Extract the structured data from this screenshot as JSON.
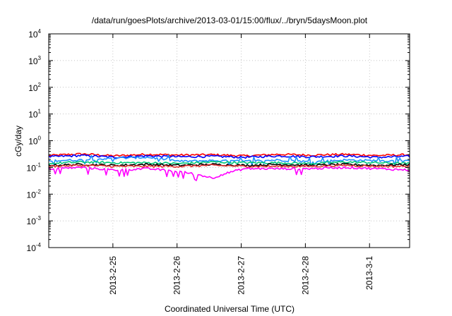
{
  "chart_data": {
    "type": "line",
    "title": "/data/run/goesPlots/archive/2013-03-01/15:00/flux/../bryn/5daysMoon.plot",
    "xlabel": "Coordinated Universal Time (UTC)",
    "ylabel": "cGy/day",
    "yscale": "log",
    "ylim": [
      0.0001,
      10000
    ],
    "y_ticks": [
      {
        "base": "10",
        "exp": "-4",
        "value": 0.0001
      },
      {
        "base": "10",
        "exp": "-3",
        "value": 0.001
      },
      {
        "base": "10",
        "exp": "-2",
        "value": 0.01
      },
      {
        "base": "10",
        "exp": "-1",
        "value": 0.1
      },
      {
        "base": "10",
        "exp": "0",
        "value": 1
      },
      {
        "base": "10",
        "exp": "1",
        "value": 10
      },
      {
        "base": "10",
        "exp": "2",
        "value": 100
      },
      {
        "base": "10",
        "exp": "3",
        "value": 1000
      },
      {
        "base": "10",
        "exp": "4",
        "value": 10000
      }
    ],
    "xlim": [
      "2013-02-24T00:00",
      "2013-03-01T15:00"
    ],
    "x_ticks": [
      {
        "label": "2013-2-25",
        "value": "2013-02-25"
      },
      {
        "label": "2013-2-26",
        "value": "2013-02-26"
      },
      {
        "label": "2013-2-27",
        "value": "2013-02-27"
      },
      {
        "label": "2013-2-28",
        "value": "2013-02-28"
      },
      {
        "label": "2013-3-1",
        "value": "2013-03-01"
      }
    ],
    "grid": true,
    "legend": "none",
    "series": [
      {
        "color": "#ff0000",
        "approx_level": 0.3,
        "values": [
          0.28,
          0.32,
          0.27,
          0.31,
          0.29,
          0.3,
          0.27,
          0.31,
          0.29,
          0.31,
          0.28,
          0.3
        ]
      },
      {
        "color": "#0000ff",
        "approx_level": 0.26,
        "values": [
          0.25,
          0.28,
          0.24,
          0.27,
          0.25,
          0.26,
          0.24,
          0.27,
          0.25,
          0.27,
          0.24,
          0.26
        ]
      },
      {
        "color": "#1e90ff",
        "approx_level": 0.18,
        "values": [
          0.18,
          0.19,
          0.22,
          0.24,
          0.17,
          0.18,
          0.17,
          0.19,
          0.16,
          0.19,
          0.18,
          0.17
        ]
      },
      {
        "color": "#00c878",
        "approx_level": 0.15,
        "values": [
          0.14,
          0.16,
          0.15,
          0.15,
          0.14,
          0.16,
          0.15,
          0.15,
          0.14,
          0.16,
          0.15,
          0.14
        ]
      },
      {
        "color": "#000000",
        "approx_level": 0.13,
        "values": [
          0.12,
          0.13,
          0.12,
          0.13,
          0.12,
          0.13,
          0.12,
          0.13,
          0.12,
          0.13,
          0.12,
          0.13
        ]
      },
      {
        "color": "#e03030",
        "approx_level": 0.11,
        "values": [
          0.11,
          0.12,
          0.11,
          0.11,
          0.11,
          0.12,
          0.11,
          0.11,
          0.11,
          0.12,
          0.11,
          0.11
        ]
      },
      {
        "color": "#ff00ff",
        "approx_level": 0.09,
        "values": [
          0.09,
          0.1,
          0.08,
          0.09,
          0.07,
          0.04,
          0.09,
          0.09,
          0.09,
          0.1,
          0.09,
          0.08
        ]
      }
    ]
  }
}
